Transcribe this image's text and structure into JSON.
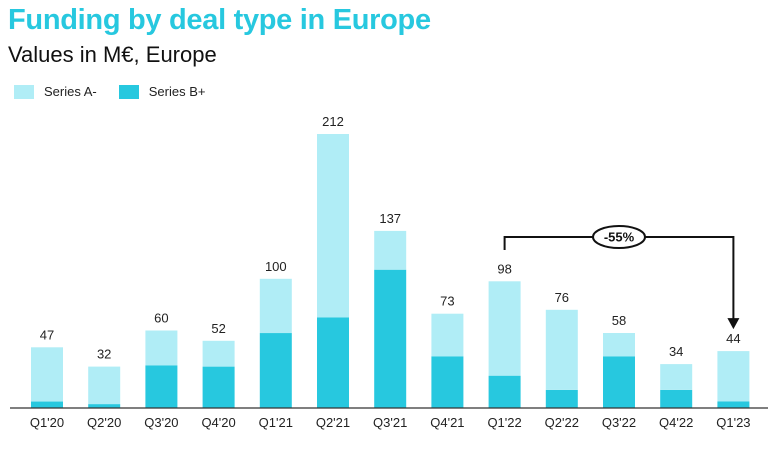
{
  "chart_data": {
    "type": "bar",
    "stacked": true,
    "title": "Funding by deal type in Europe",
    "subtitle": "Values in M€, Europe",
    "categories": [
      "Q1'20",
      "Q2'20",
      "Q3'20",
      "Q4'20",
      "Q1'21",
      "Q2'21",
      "Q3'21",
      "Q4'21",
      "Q1'22",
      "Q2'22",
      "Q3'22",
      "Q4'22",
      "Q1'23"
    ],
    "series": [
      {
        "name": "Series B+",
        "color": "#27c8df",
        "values": [
          5,
          3,
          33,
          32,
          58,
          70,
          107,
          40,
          25,
          14,
          40,
          14,
          5
        ]
      },
      {
        "name": "Series A-",
        "color": "#b0edf6",
        "values": [
          42,
          29,
          27,
          20,
          42,
          142,
          30,
          33,
          73,
          62,
          18,
          20,
          39
        ]
      }
    ],
    "totals": [
      47,
      32,
      60,
      52,
      100,
      212,
      137,
      73,
      98,
      76,
      58,
      34,
      44
    ],
    "legend_order": [
      "Series A-",
      "Series B+"
    ],
    "legend_position": "top-left",
    "ylim": [
      0,
      212
    ],
    "grid": false,
    "annotation": {
      "text": "-55%",
      "from": "Q1'22",
      "to": "Q1'23"
    }
  }
}
